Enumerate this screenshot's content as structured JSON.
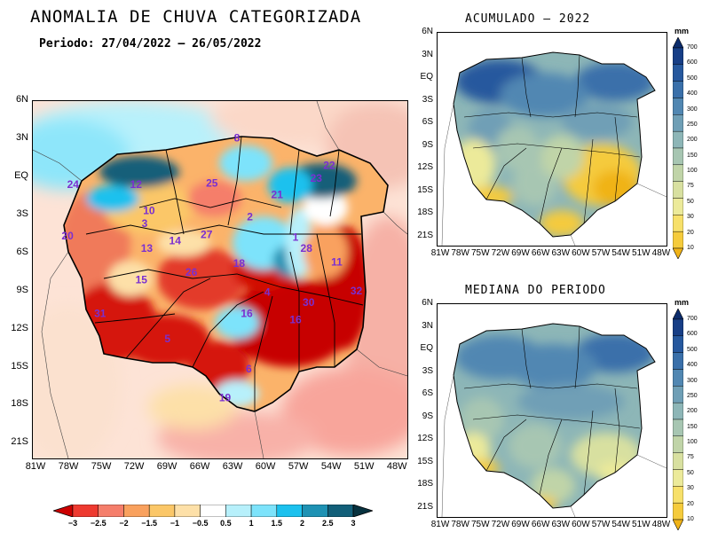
{
  "main_map": {
    "title": "ANOMALIA DE CHUVA CATEGORIZADA",
    "period": "Periodo: 27/04/2022 — 26/05/2022",
    "lat_ticks": [
      "6N",
      "3N",
      "EQ",
      "3S",
      "6S",
      "9S",
      "12S",
      "15S",
      "18S",
      "21S"
    ],
    "lon_ticks": [
      "81W",
      "78W",
      "75W",
      "72W",
      "69W",
      "66W",
      "63W",
      "60W",
      "57W",
      "54W",
      "51W",
      "48W"
    ],
    "basin_labels": [
      {
        "text": "8",
        "lon": -63.2,
        "lat": 3.0
      },
      {
        "text": "22",
        "lon": -54.7,
        "lat": 0.8
      },
      {
        "text": "23",
        "lon": -55.9,
        "lat": -0.2
      },
      {
        "text": "24",
        "lon": -78.3,
        "lat": -0.7
      },
      {
        "text": "12",
        "lon": -72.5,
        "lat": -0.7
      },
      {
        "text": "25",
        "lon": -65.5,
        "lat": -0.6
      },
      {
        "text": "21",
        "lon": -59.5,
        "lat": -1.5
      },
      {
        "text": "10",
        "lon": -71.3,
        "lat": -2.8
      },
      {
        "text": "2",
        "lon": -62.0,
        "lat": -3.3
      },
      {
        "text": "3",
        "lon": -71.7,
        "lat": -3.8
      },
      {
        "text": "20",
        "lon": -78.8,
        "lat": -4.8
      },
      {
        "text": "27",
        "lon": -66.0,
        "lat": -4.7
      },
      {
        "text": "1",
        "lon": -57.8,
        "lat": -4.9
      },
      {
        "text": "13",
        "lon": -71.5,
        "lat": -5.8
      },
      {
        "text": "14",
        "lon": -68.9,
        "lat": -5.2
      },
      {
        "text": "28",
        "lon": -56.8,
        "lat": -5.8
      },
      {
        "text": "18",
        "lon": -63.0,
        "lat": -7.0
      },
      {
        "text": "11",
        "lon": -54.0,
        "lat": -6.9
      },
      {
        "text": "26",
        "lon": -67.4,
        "lat": -7.7
      },
      {
        "text": "15",
        "lon": -72.0,
        "lat": -8.3
      },
      {
        "text": "4",
        "lon": -60.4,
        "lat": -9.3
      },
      {
        "text": "32",
        "lon": -52.2,
        "lat": -9.2
      },
      {
        "text": "30",
        "lon": -56.6,
        "lat": -10.1
      },
      {
        "text": "31",
        "lon": -75.8,
        "lat": -11.0
      },
      {
        "text": "16",
        "lon": -62.3,
        "lat": -11.0
      },
      {
        "text": "16",
        "lon": -57.8,
        "lat": -11.5
      },
      {
        "text": "5",
        "lon": -69.6,
        "lat": -13.0
      },
      {
        "text": "6",
        "lon": -62.1,
        "lat": -15.4
      },
      {
        "text": "19",
        "lon": -64.3,
        "lat": -17.7
      }
    ],
    "colorbar": {
      "labels": [
        "−3",
        "−2.5",
        "−2",
        "−1.5",
        "−1",
        "−0.5",
        "0.5",
        "1",
        "1.5",
        "2",
        "2.5",
        "3"
      ],
      "colors": [
        "#cc0000",
        "#ee3a30",
        "#f57e6b",
        "#f9a15e",
        "#fbc768",
        "#fde0a8",
        "#ffffff",
        "#b7f0fb",
        "#7de3fb",
        "#1cc1ee",
        "#1e92b4",
        "#125f79",
        "#07323f"
      ]
    }
  },
  "accumulated_map": {
    "title": "ACUMULADO — 2022",
    "unit": "mm",
    "lat_ticks": [
      "6N",
      "3N",
      "EQ",
      "3S",
      "6S",
      "9S",
      "12S",
      "15S",
      "18S",
      "21S"
    ],
    "lon_ticks": [
      "81W",
      "78W",
      "75W",
      "72W",
      "69W",
      "66W",
      "63W",
      "60W",
      "57W",
      "54W",
      "51W",
      "48W"
    ]
  },
  "median_map": {
    "title": "MEDIANA DO PERIODO",
    "unit": "mm",
    "lat_ticks": [
      "6N",
      "3N",
      "EQ",
      "3S",
      "6S",
      "9S",
      "12S",
      "15S",
      "18S",
      "21S"
    ],
    "lon_ticks": [
      "81W",
      "78W",
      "75W",
      "72W",
      "69W",
      "66W",
      "63W",
      "60W",
      "57W",
      "54W",
      "51W",
      "48W"
    ]
  },
  "mm_scale": {
    "labels": [
      "700",
      "600",
      "500",
      "400",
      "300",
      "250",
      "200",
      "150",
      "100",
      "75",
      "50",
      "30",
      "20",
      "10"
    ],
    "colors": [
      "#0c2c6c",
      "#173e86",
      "#26589e",
      "#3a70aa",
      "#5187b2",
      "#6f9fb6",
      "#8db6b7",
      "#a7c6b2",
      "#c0d4a8",
      "#d8e0a0",
      "#ecea9a",
      "#f7e06a",
      "#f5cb3c",
      "#f0b318"
    ]
  }
}
